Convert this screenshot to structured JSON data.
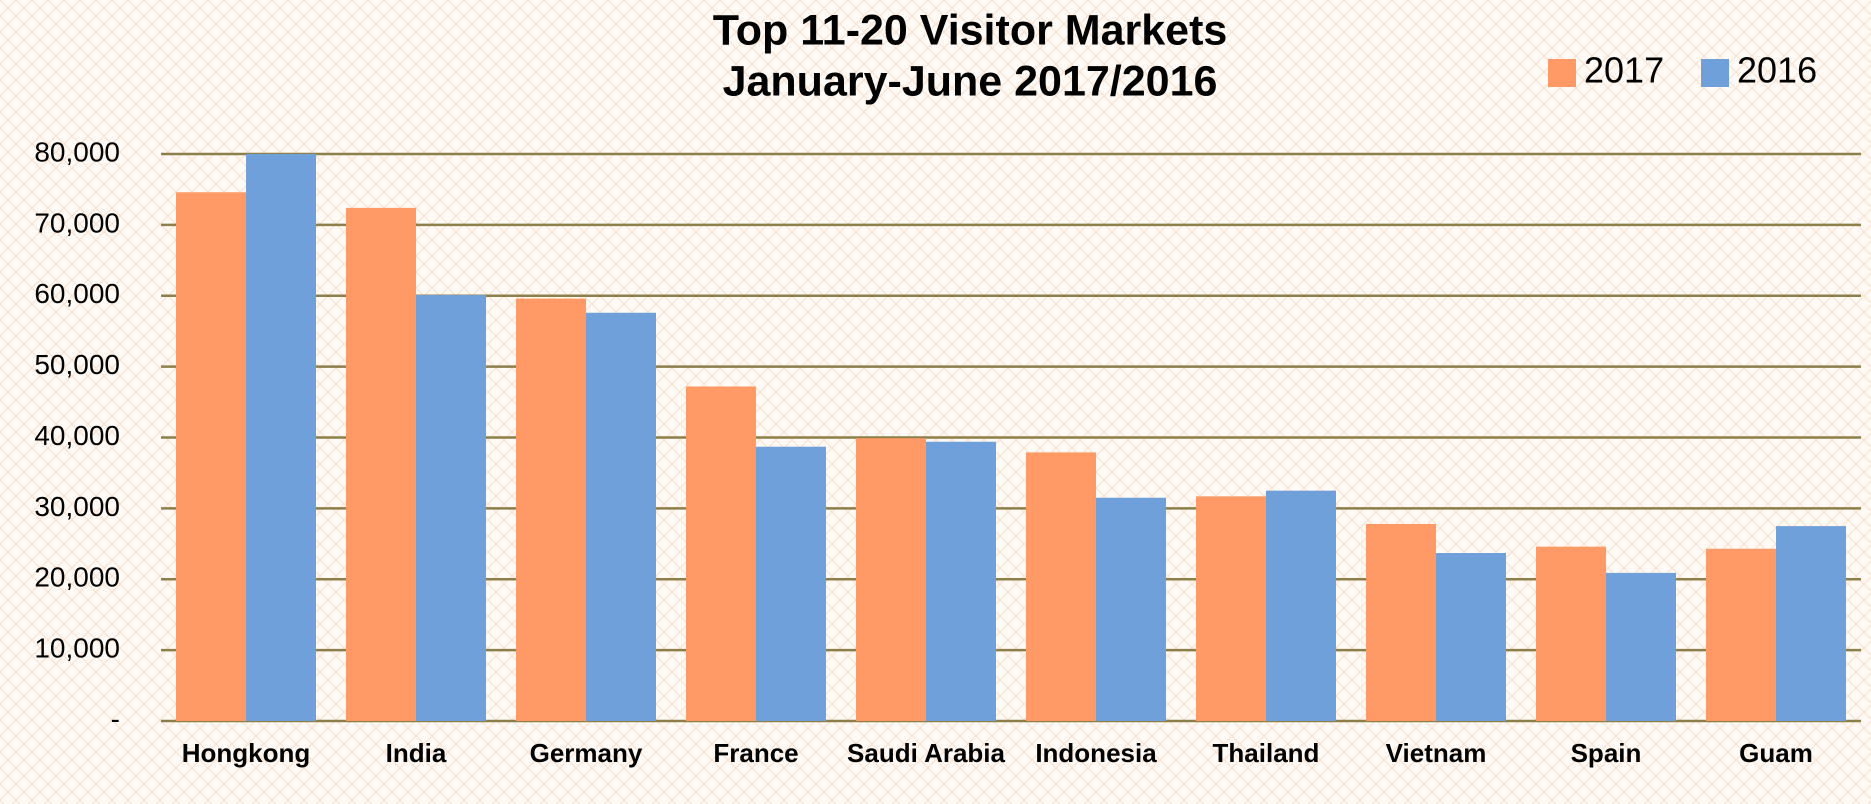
{
  "chart_data": {
    "type": "bar",
    "title": "Top 11-20 Visitor Markets",
    "subtitle": "January-June 2017/2016",
    "categories": [
      "Hongkong",
      "India",
      "Germany",
      "France",
      "Saudi Arabia",
      "Indonesia",
      "Thailand",
      "Vietnam",
      "Spain",
      "Guam"
    ],
    "series": [
      {
        "name": "2017",
        "color": "#ff9966",
        "values": [
          74600,
          72400,
          59600,
          47200,
          39900,
          37900,
          31700,
          27800,
          24600,
          24300
        ]
      },
      {
        "name": "2016",
        "color": "#6fa0da",
        "values": [
          80000,
          60100,
          57600,
          38700,
          39400,
          31500,
          32500,
          23700,
          20900,
          27500
        ]
      }
    ],
    "ylim": [
      0,
      80000
    ],
    "yticks": [
      {
        "value": 0,
        "label": "-"
      },
      {
        "value": 10000,
        "label": "10,000"
      },
      {
        "value": 20000,
        "label": "20,000"
      },
      {
        "value": 30000,
        "label": "30,000"
      },
      {
        "value": 40000,
        "label": "40,000"
      },
      {
        "value": 50000,
        "label": "50,000"
      },
      {
        "value": 60000,
        "label": "60,000"
      },
      {
        "value": 70000,
        "label": "70,000"
      },
      {
        "value": 80000,
        "label": "80,000"
      }
    ],
    "grid": true,
    "legend": "top-right"
  }
}
